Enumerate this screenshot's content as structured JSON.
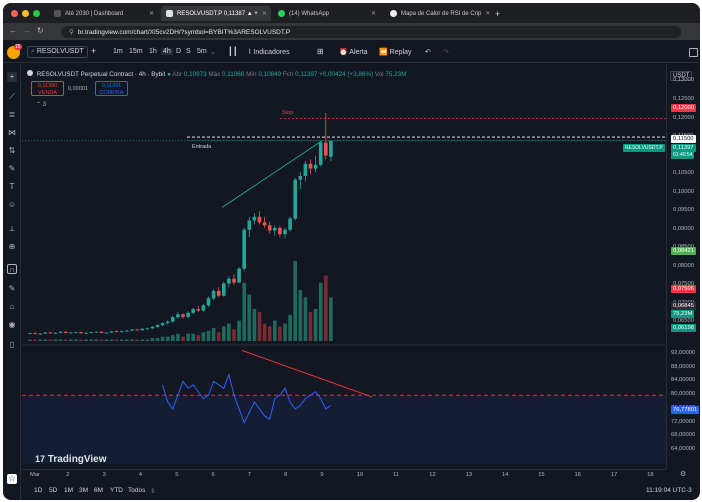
{
  "browser": {
    "tabs": [
      {
        "label": "Até 2030 | Dashboard",
        "active": false
      },
      {
        "label": "RESOLVUSDT.P 0,11387 ▲ +",
        "active": true
      },
      {
        "label": "(14) WhatsApp",
        "active": false
      },
      {
        "label": "Mapa de Calor de RSI de Crip",
        "active": false
      }
    ],
    "new_tab": "+",
    "url": "br.tradingview.com/chart/XI5cv2DH/?symbol=BYBIT%3ARESOLVUSDT.P"
  },
  "toolbar": {
    "avatar_badge": "15",
    "symbol": "RESOLVUSDT",
    "add_symbol": "+",
    "intervals": [
      "1m",
      "15m",
      "1h",
      "4h",
      "D",
      "S",
      "5m"
    ],
    "selected_interval": "4h",
    "indicators_label": "Indicadores",
    "alert_label": "Alerta",
    "replay_label": "Replay"
  },
  "legend": {
    "title": "RESOLVUSDT Perpetual Contract · 4h · Bybit",
    "abr_k": "Abr",
    "abr_v": "0,10973",
    "max_k": "Máx",
    "max_v": "0,11068",
    "min_k": "Mín",
    "min_v": "0,10849",
    "fch_k": "Fch",
    "fch_v": "0,11397",
    "change": "+0,00424 (+3,86%)",
    "vol_k": "Vol",
    "vol_v": "75,23M",
    "sell_price": "0,11390",
    "sell_label": "VENDA",
    "spread": "0,00001",
    "buy_price": "0,11391",
    "buy_label": "COMPRA",
    "collapse": "⌃ 3"
  },
  "drawings": {
    "stop_label": "Stop",
    "entry_label": "Entrada"
  },
  "price_scale": {
    "currency": "USDT",
    "ticks": [
      "0,13000",
      "0,12500",
      "0,12000",
      "0,11500",
      "0,11000",
      "0,10500",
      "0,10000",
      "0,09500",
      "0,09000",
      "0,08500",
      "0,08000",
      "0,07500",
      "0,07000",
      "0,06500"
    ],
    "tag_stop": "0,12000",
    "tag_entry": "0,11500",
    "tag_last": "0,11397",
    "tag_countdown": "01:40:54",
    "tag_symbol": "RESOLVUSDT.P",
    "tag_green": "0,08421",
    "tag_red": "0,07506",
    "tag_vol1": "0,06845",
    "tag_vol2": "75,23M",
    "tag_low": "0,06198"
  },
  "rsi_scale": {
    "ticks": [
      "92,00000",
      "88,00000",
      "84,00000",
      "80,00000",
      "76,00000",
      "72,00000",
      "68,00000",
      "64,00000"
    ],
    "tag_value": "76,77801"
  },
  "time_axis": {
    "labels": [
      "Mar",
      "2",
      "3",
      "4",
      "5",
      "6",
      "7",
      "8",
      "9",
      "10",
      "11",
      "12",
      "13",
      "14",
      "15",
      "16",
      "17",
      "18"
    ]
  },
  "bottom_bar": {
    "ranges": [
      "1D",
      "5D",
      "1M",
      "3M",
      "6M",
      "YTD",
      "Todos"
    ],
    "clock": "11:19:04 UTC-3"
  },
  "branding": {
    "tv_logo": "TradingView"
  },
  "colors": {
    "bull": "#26a69a",
    "bear": "#ef5350",
    "rsi": "#2962ff",
    "bg": "#131722"
  },
  "chart_data": {
    "type": "candlestick",
    "ohlc": [
      [
        0.062,
        0.0622,
        0.0618,
        0.0621
      ],
      [
        0.0621,
        0.0623,
        0.0618,
        0.0619
      ],
      [
        0.0619,
        0.0621,
        0.0616,
        0.062
      ],
      [
        0.062,
        0.0624,
        0.0619,
        0.0623
      ],
      [
        0.0623,
        0.0624,
        0.0619,
        0.0621
      ],
      [
        0.0621,
        0.0623,
        0.0619,
        0.0622
      ],
      [
        0.0622,
        0.0626,
        0.0621,
        0.0625
      ],
      [
        0.0625,
        0.0626,
        0.0621,
        0.0622
      ],
      [
        0.0622,
        0.0624,
        0.062,
        0.0623
      ],
      [
        0.0623,
        0.0625,
        0.0621,
        0.0624
      ],
      [
        0.0624,
        0.0625,
        0.062,
        0.0621
      ],
      [
        0.0621,
        0.0623,
        0.0619,
        0.0622
      ],
      [
        0.0622,
        0.0625,
        0.0621,
        0.0624
      ],
      [
        0.0624,
        0.0626,
        0.0622,
        0.0625
      ],
      [
        0.0625,
        0.0626,
        0.0621,
        0.0622
      ],
      [
        0.0622,
        0.0624,
        0.062,
        0.0623
      ],
      [
        0.0623,
        0.0627,
        0.0622,
        0.0626
      ],
      [
        0.0626,
        0.0629,
        0.0624,
        0.0625
      ],
      [
        0.0625,
        0.0628,
        0.0623,
        0.0627
      ],
      [
        0.0627,
        0.063,
        0.0625,
        0.0628
      ],
      [
        0.0628,
        0.0632,
        0.0627,
        0.0631
      ],
      [
        0.0631,
        0.0633,
        0.0627,
        0.0629
      ],
      [
        0.0629,
        0.0634,
        0.0628,
        0.0633
      ],
      [
        0.0633,
        0.0636,
        0.063,
        0.0634
      ],
      [
        0.0634,
        0.064,
        0.0633,
        0.0638
      ],
      [
        0.0638,
        0.0645,
        0.0636,
        0.0643
      ],
      [
        0.0643,
        0.065,
        0.064,
        0.0648
      ],
      [
        0.0648,
        0.0655,
        0.0645,
        0.0652
      ],
      [
        0.0652,
        0.0668,
        0.065,
        0.0664
      ],
      [
        0.0664,
        0.0678,
        0.066,
        0.0672
      ],
      [
        0.0672,
        0.0675,
        0.066,
        0.0665
      ],
      [
        0.0665,
        0.068,
        0.0662,
        0.0676
      ],
      [
        0.0676,
        0.069,
        0.0672,
        0.0686
      ],
      [
        0.0686,
        0.0695,
        0.0678,
        0.0682
      ],
      [
        0.0682,
        0.07,
        0.068,
        0.0696
      ],
      [
        0.0696,
        0.072,
        0.0692,
        0.0715
      ],
      [
        0.0715,
        0.074,
        0.071,
        0.0735
      ],
      [
        0.0735,
        0.0745,
        0.0718,
        0.0722
      ],
      [
        0.0722,
        0.076,
        0.072,
        0.0755
      ],
      [
        0.0755,
        0.0775,
        0.0745,
        0.0768
      ],
      [
        0.0768,
        0.078,
        0.0752,
        0.0758
      ],
      [
        0.0758,
        0.08,
        0.0755,
        0.0795
      ],
      [
        0.0795,
        0.0905,
        0.079,
        0.09
      ],
      [
        0.09,
        0.0935,
        0.088,
        0.0925
      ],
      [
        0.0925,
        0.0945,
        0.0915,
        0.0935
      ],
      [
        0.0935,
        0.095,
        0.0915,
        0.092
      ],
      [
        0.092,
        0.0935,
        0.0905,
        0.0912
      ],
      [
        0.0912,
        0.0922,
        0.089,
        0.0898
      ],
      [
        0.0898,
        0.0912,
        0.0884,
        0.0905
      ],
      [
        0.0905,
        0.091,
        0.088,
        0.0888
      ],
      [
        0.0888,
        0.0905,
        0.0876,
        0.09
      ],
      [
        0.09,
        0.0935,
        0.0895,
        0.093
      ],
      [
        0.093,
        0.104,
        0.0925,
        0.1035
      ],
      [
        0.1035,
        0.1055,
        0.101,
        0.1045
      ],
      [
        0.1045,
        0.1085,
        0.103,
        0.1078
      ],
      [
        0.1078,
        0.109,
        0.105,
        0.1065
      ],
      [
        0.1065,
        0.11,
        0.1055,
        0.1075
      ],
      [
        0.1075,
        0.114,
        0.107,
        0.1135
      ],
      [
        0.1135,
        0.1215,
        0.109,
        0.11
      ],
      [
        0.1097,
        0.114,
        0.1085,
        0.114
      ]
    ],
    "volume_up": [
      1,
      1,
      1,
      1,
      1,
      1,
      1,
      1,
      1,
      1,
      1,
      1,
      1,
      1,
      1,
      1,
      1,
      1,
      1,
      1,
      1,
      1,
      1,
      1,
      2,
      2,
      3,
      3,
      4,
      5,
      3,
      5,
      5,
      4,
      6,
      7,
      9,
      6,
      10,
      12,
      8,
      14,
      40,
      32,
      22,
      20,
      12,
      10,
      14,
      10,
      12,
      18,
      55,
      35,
      30,
      20,
      22,
      40,
      45,
      30
    ],
    "volume_down_flags": [
      0,
      1,
      0,
      0,
      1,
      0,
      0,
      1,
      0,
      0,
      1,
      0,
      0,
      0,
      1,
      0,
      0,
      1,
      0,
      0,
      0,
      1,
      0,
      0,
      0,
      0,
      0,
      0,
      0,
      0,
      1,
      0,
      0,
      1,
      0,
      0,
      0,
      1,
      0,
      0,
      1,
      0,
      0,
      0,
      0,
      1,
      1,
      1,
      0,
      1,
      0,
      0,
      0,
      0,
      0,
      1,
      0,
      0,
      1,
      0
    ],
    "rsi": [
      63,
      62,
      67,
      70,
      75,
      74,
      72,
      70,
      76,
      73,
      77,
      75,
      80,
      83,
      82,
      87,
      85,
      80,
      79,
      82,
      86,
      85,
      88,
      85,
      84,
      81,
      83,
      78,
      76,
      80,
      84,
      82,
      83,
      81,
      79,
      80,
      84,
      83,
      82,
      86,
      80,
      76,
      72,
      75,
      78,
      76,
      74,
      73,
      79,
      80,
      82,
      78,
      76,
      77,
      79,
      80,
      81,
      79,
      76,
      77
    ],
    "price_range": [
      0.06,
      0.132
    ],
    "rsi_range": [
      60,
      94
    ],
    "rsi_overbought": 80
  }
}
